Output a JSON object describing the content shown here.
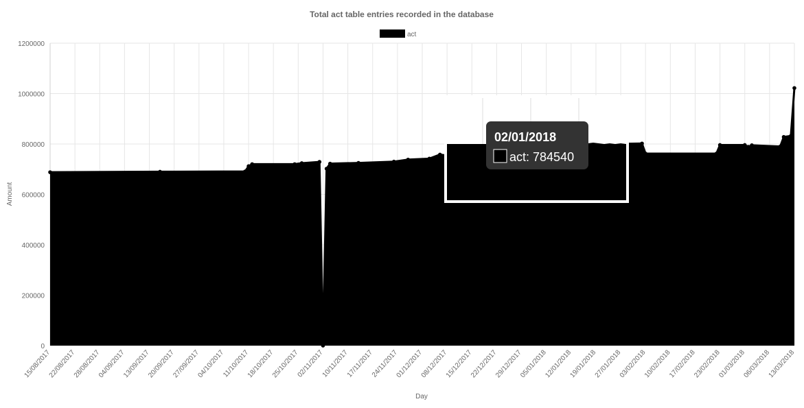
{
  "chart_data": {
    "type": "area",
    "title": "Total act table entries recorded in the database",
    "xlabel": "Day",
    "ylabel": "Amount",
    "ylim": [
      0,
      1200000
    ],
    "y_ticks": [
      0,
      200000,
      400000,
      600000,
      800000,
      1000000,
      1200000
    ],
    "y_tick_labels": [
      "0",
      "200000",
      "400000",
      "600000",
      "800000",
      "1000000",
      "1200000"
    ],
    "grid": true,
    "legend_position": "top",
    "x_range": [
      "2017-08-15",
      "2018-03-13"
    ],
    "x_tick_labels": [
      "15/08/2017",
      "22/08/2017",
      "28/08/2017",
      "04/09/2017",
      "13/09/2017",
      "20/09/2017",
      "27/09/2017",
      "04/10/2017",
      "11/10/2017",
      "18/10/2017",
      "25/10/2017",
      "02/11/2017",
      "10/11/2017",
      "17/11/2017",
      "24/11/2017",
      "01/12/2017",
      "08/12/2017",
      "15/12/2017",
      "22/12/2017",
      "29/12/2017",
      "05/01/2018",
      "12/01/2018",
      "19/01/2018",
      "27/01/2018",
      "03/02/2018",
      "10/02/2018",
      "17/02/2018",
      "23/02/2018",
      "01/03/2018",
      "06/03/2018",
      "13/03/2018"
    ],
    "series": [
      {
        "name": "act",
        "color": "#000000",
        "points": [
          [
            "2017-08-15",
            688000
          ],
          [
            "2017-09-15",
            690000
          ],
          [
            "2017-10-09",
            691000
          ],
          [
            "2017-10-10",
            712000
          ],
          [
            "2017-10-11",
            720000
          ],
          [
            "2017-10-23",
            720000
          ],
          [
            "2017-10-25",
            724000
          ],
          [
            "2017-10-30",
            729000
          ],
          [
            "2017-10-31",
            0
          ],
          [
            "2017-11-01",
            702000
          ],
          [
            "2017-11-02",
            722000
          ],
          [
            "2017-11-10",
            725000
          ],
          [
            "2017-11-20",
            730000
          ],
          [
            "2017-11-24",
            738000
          ],
          [
            "2017-11-30",
            742000
          ],
          [
            "2017-12-03",
            758000
          ],
          [
            "2017-12-06",
            752000
          ],
          [
            "2017-12-09",
            748000
          ],
          [
            "2017-12-12",
            768000
          ],
          [
            "2017-12-15",
            784000
          ],
          [
            "2017-12-22",
            786000
          ],
          [
            "2018-01-02",
            784540
          ],
          [
            "2018-01-20",
            800000
          ],
          [
            "2018-01-29",
            802000
          ],
          [
            "2018-01-30",
            762000
          ],
          [
            "2018-02-19",
            762000
          ],
          [
            "2018-02-20",
            796000
          ],
          [
            "2018-02-27",
            796000
          ],
          [
            "2018-02-28",
            789000
          ],
          [
            "2018-03-01",
            795000
          ],
          [
            "2018-03-09",
            790000
          ],
          [
            "2018-03-10",
            828000
          ],
          [
            "2018-03-12",
            832000
          ],
          [
            "2018-03-13",
            1022000
          ]
        ]
      }
    ],
    "tooltip": {
      "date": "02/01/2018",
      "value_text": "act: 784540"
    }
  }
}
